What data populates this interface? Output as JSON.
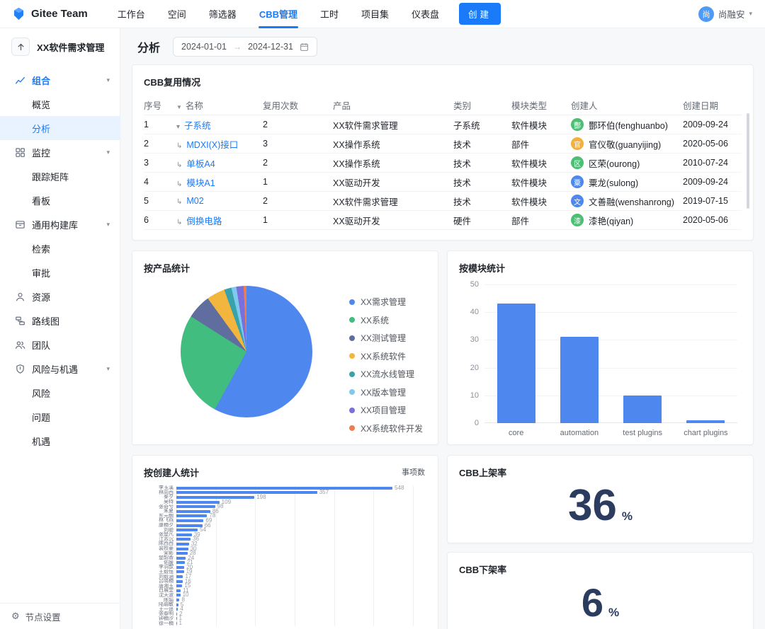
{
  "topbar": {
    "brand": "Gitee Team",
    "nav": [
      {
        "label": "工作台",
        "active": false
      },
      {
        "label": "空间",
        "active": false
      },
      {
        "label": "筛选器",
        "active": false
      },
      {
        "label": "CBB管理",
        "active": true
      },
      {
        "label": "工时",
        "active": false
      },
      {
        "label": "项目集",
        "active": false
      },
      {
        "label": "仪表盘",
        "active": false
      }
    ],
    "create_label": "创建",
    "user": {
      "name": "尚融安",
      "initial": "尚",
      "avatar_color": "#4e9af5"
    }
  },
  "sidebar": {
    "project_title": "XX软件需求管理",
    "groups": [
      {
        "icon": "chart-line-icon",
        "label": "组合",
        "caret": true,
        "active": true,
        "children": [
          {
            "label": "概览",
            "active": false
          },
          {
            "label": "分析",
            "active": true
          }
        ]
      },
      {
        "icon": "grid-icon",
        "label": "监控",
        "caret": true,
        "active": false,
        "children": [
          {
            "label": "跟踪矩阵",
            "active": false
          },
          {
            "label": "看板",
            "active": false
          }
        ]
      },
      {
        "icon": "archive-icon",
        "label": "通用构建库",
        "caret": true,
        "active": false,
        "children": [
          {
            "label": "检索",
            "active": false
          },
          {
            "label": "审批",
            "active": false
          }
        ]
      },
      {
        "icon": "user-icon",
        "label": "资源",
        "caret": false,
        "active": false,
        "children": []
      },
      {
        "icon": "route-icon",
        "label": "路线图",
        "caret": false,
        "active": false,
        "children": []
      },
      {
        "icon": "team-icon",
        "label": "团队",
        "caret": false,
        "active": false,
        "children": []
      },
      {
        "icon": "shield-icon",
        "label": "风险与机遇",
        "caret": true,
        "active": false,
        "children": [
          {
            "label": "风险",
            "active": false
          },
          {
            "label": "问题",
            "active": false
          },
          {
            "label": "机遇",
            "active": false
          }
        ]
      }
    ],
    "footer_label": "节点设置"
  },
  "page": {
    "title": "分析",
    "date_start": "2024-01-01",
    "date_end": "2024-12-31",
    "date_arrow": "→"
  },
  "reuse_table": {
    "title": "CBB复用情况",
    "columns": [
      "序号",
      "名称",
      "复用次数",
      "产品",
      "类别",
      "模块类型",
      "创建人",
      "创建日期"
    ],
    "rows": [
      {
        "no": "1",
        "prefix": "caret",
        "name": "子系统",
        "count": "2",
        "product": "XX软件需求管理",
        "category": "子系统",
        "module_type": "软件模块",
        "creator": "酆环伯(fenghuanbo)",
        "avatar_letter": "酆",
        "avatar_color": "#4bbf73",
        "date": "2009-09-24"
      },
      {
        "no": "2",
        "prefix": "child",
        "name": "MDXI(X)接口",
        "count": "3",
        "product": "XX操作系统",
        "category": "技术",
        "module_type": "部件",
        "creator": "官仪敬(guanyijing)",
        "avatar_letter": "官",
        "avatar_color": "#f3b03c",
        "date": "2020-05-06"
      },
      {
        "no": "3",
        "prefix": "child",
        "name": "单板A4",
        "count": "2",
        "product": "XX操作系统",
        "category": "技术",
        "module_type": "软件模块",
        "creator": "区荣(ourong)",
        "avatar_letter": "区",
        "avatar_color": "#4bbf73",
        "date": "2010-07-24"
      },
      {
        "no": "4",
        "prefix": "child",
        "name": "模块A1",
        "count": "1",
        "product": "XX驱动开发",
        "category": "技术",
        "module_type": "软件模块",
        "creator": "粟龙(sulong)",
        "avatar_letter": "粟",
        "avatar_color": "#4e87ee",
        "date": "2009-09-24"
      },
      {
        "no": "5",
        "prefix": "child",
        "name": "M02",
        "count": "2",
        "product": "XX软件需求管理",
        "category": "技术",
        "module_type": "软件模块",
        "creator": "文善融(wenshanrong)",
        "avatar_letter": "文",
        "avatar_color": "#4e87ee",
        "date": "2019-07-15"
      },
      {
        "no": "6",
        "prefix": "child",
        "name": "倒换电路",
        "count": "1",
        "product": "XX驱动开发",
        "category": "硬件",
        "module_type": "部件",
        "creator": "漆艳(qiyan)",
        "avatar_letter": "漆",
        "avatar_color": "#4bbf73",
        "date": "2020-05-06"
      }
    ]
  },
  "chart_data": [
    {
      "type": "pie",
      "title": "按产品统计",
      "legend_position": "right",
      "values_are": "estimated percent",
      "series": [
        {
          "label": "XX需求管理",
          "value": 58,
          "color": "#4e87ee"
        },
        {
          "label": "XX系统",
          "value": 26,
          "color": "#41bd7f"
        },
        {
          "label": "XX测试管理",
          "value": 6,
          "color": "#5f6e9e"
        },
        {
          "label": "XX系统软件",
          "value": 4.5,
          "color": "#f2b63f"
        },
        {
          "label": "XX流水线管理",
          "value": 1.8,
          "color": "#38a3ab"
        },
        {
          "label": "XX版本管理",
          "value": 1.2,
          "color": "#7fc9ef"
        },
        {
          "label": "XX项目管理",
          "value": 1.8,
          "color": "#7a6fdf"
        },
        {
          "label": "XX系统软件开发",
          "value": 0.7,
          "color": "#ee7d4e"
        }
      ]
    },
    {
      "type": "bar",
      "title": "按模块统计",
      "categories": [
        "core",
        "automation",
        "test plugins",
        "chart plugins"
      ],
      "values": [
        43,
        31,
        10,
        1
      ],
      "ylim": [
        0,
        50
      ],
      "yticks": [
        0,
        10,
        20,
        30,
        40,
        50
      ],
      "bar_color": "#4e87ee",
      "grid": true
    },
    {
      "type": "bar",
      "orientation": "horizontal",
      "title": "按创建人统计",
      "legend": [
        "事项数"
      ],
      "xlim": [
        0,
        600
      ],
      "xticks": [
        0,
        100,
        200,
        300,
        400,
        500,
        600
      ],
      "bar_color": "#4e87ee",
      "categories": [
        "李玉溪",
        "林向西",
        "秦夕",
        "吴特",
        "张奇兮",
        "朱夏",
        "东元朗",
        "林飞燕",
        "康楠夕",
        "刘聪",
        "张楚凡",
        "江苏沉",
        "陈西西",
        "裴牧豪",
        "宋彬",
        "楚韶香",
        "佑媛",
        "李羽歆",
        "王毅恒",
        "刘毅涵",
        "吕晓楠",
        "唐湘玉",
        "白展堂",
        "沈天波",
        "陈娟",
        "陆瑜敏",
        "王一遥",
        "张春明",
        "钟楠汐",
        "徐一楠"
      ],
      "values": [
        548,
        357,
        198,
        109,
        98,
        86,
        78,
        69,
        66,
        54,
        39,
        36,
        32,
        30,
        28,
        24,
        21,
        20,
        19,
        17,
        16,
        15,
        11,
        10,
        8,
        5,
        4,
        2,
        1,
        1
      ]
    }
  ],
  "kpis": [
    {
      "title": "CBB上架率",
      "value": "36",
      "unit": "%"
    },
    {
      "title": "CBB下架率",
      "value": "6",
      "unit": "%"
    }
  ]
}
